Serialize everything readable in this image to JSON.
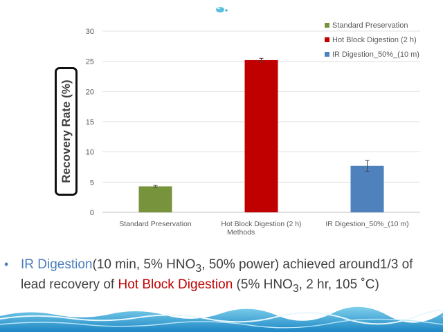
{
  "chart_data": {
    "type": "bar",
    "categories": [
      "Standard Preservation",
      "Hot Block Digestion (2 h)",
      "IR Digestion_50%_(10 m)"
    ],
    "values": [
      4.3,
      25.2,
      7.7
    ],
    "error": [
      0.15,
      0.3,
      0.9
    ],
    "colors": [
      "#77933c",
      "#c00000",
      "#4f81bd"
    ],
    "xlabel": "Methods",
    "ylabel": "Recovery Rate (%)",
    "ylim": [
      0,
      30
    ],
    "yticks": [
      0,
      5,
      10,
      15,
      20,
      25,
      30
    ],
    "grid": true,
    "legend_placement": "top-right"
  },
  "bullet": {
    "p1": "IR Digestion",
    "p2": "(10 min, 5% HNO",
    "sub1": "3",
    "p3": ", 50% power) achieved around1/3 of lead recovery of ",
    "p4": "Hot Block Digestion",
    "p5": " (5% HNO",
    "sub2": "3",
    "p6": ", 2 hr, 105 ˚C)"
  },
  "icons": {
    "bullet": "bullet-dot-icon",
    "logo": "water-drop-logo-icon",
    "footer": "water-wave-decoration-icon"
  }
}
